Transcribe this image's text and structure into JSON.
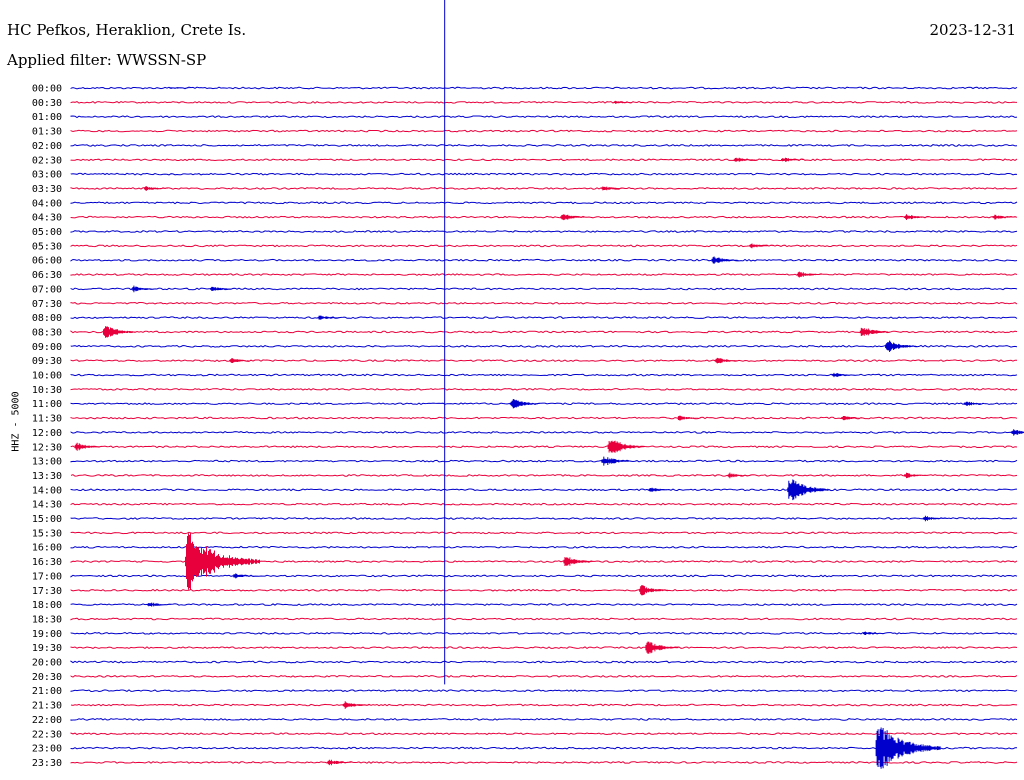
{
  "header": {
    "station": "HC Pefkos, Heraklion, Crete Is.",
    "filter": "Applied filter: WWSSN-SP",
    "date": "2023-12-31",
    "channel": "HHZ - 5000"
  },
  "chart_data": {
    "type": "line",
    "title": "HC Pefkos, Heraklion, Crete Is.",
    "date": "2023-12-31",
    "filter": "WWSSN-SP",
    "ylabel": "HHZ - 5000",
    "row_labels": [
      "00:00",
      "00:30",
      "01:00",
      "01:30",
      "02:00",
      "02:30",
      "03:00",
      "03:30",
      "04:00",
      "04:30",
      "05:00",
      "05:30",
      "06:00",
      "06:30",
      "07:00",
      "07:30",
      "08:00",
      "08:30",
      "09:00",
      "09:30",
      "10:00",
      "10:30",
      "11:00",
      "11:30",
      "12:00",
      "12:30",
      "13:00",
      "13:30",
      "14:00",
      "14:30",
      "15:00",
      "15:30",
      "16:00",
      "16:30",
      "17:00",
      "17:30",
      "18:00",
      "18:30",
      "19:00",
      "19:30",
      "20:00",
      "20:30",
      "21:00",
      "21:30",
      "22:00",
      "22:30",
      "23:00",
      "23:30"
    ],
    "row_colors": [
      "#0000cc",
      "#e8003c"
    ],
    "x_range_minutes": [
      0,
      30
    ],
    "vertical_marker": {
      "row_start": 0,
      "row_end": 41,
      "x_minute": 11.85,
      "color": "#0000cc"
    },
    "events": [
      {
        "row": 0,
        "x_minute": 3.1,
        "amp": 2
      },
      {
        "row": 1,
        "x_minute": 17.2,
        "amp": 3
      },
      {
        "row": 5,
        "x_minute": 21.0,
        "amp": 4
      },
      {
        "row": 5,
        "x_minute": 22.5,
        "amp": 4
      },
      {
        "row": 7,
        "x_minute": 2.3,
        "amp": 4
      },
      {
        "row": 7,
        "x_minute": 16.8,
        "amp": 4
      },
      {
        "row": 9,
        "x_minute": 15.5,
        "amp": 6
      },
      {
        "row": 9,
        "x_minute": 26.4,
        "amp": 5
      },
      {
        "row": 9,
        "x_minute": 29.2,
        "amp": 4
      },
      {
        "row": 11,
        "x_minute": 21.5,
        "amp": 4
      },
      {
        "row": 12,
        "x_minute": 20.3,
        "amp": 6
      },
      {
        "row": 13,
        "x_minute": 23.0,
        "amp": 5
      },
      {
        "row": 14,
        "x_minute": 1.9,
        "amp": 5
      },
      {
        "row": 14,
        "x_minute": 4.4,
        "amp": 4
      },
      {
        "row": 16,
        "x_minute": 7.8,
        "amp": 4
      },
      {
        "row": 17,
        "x_minute": 1.0,
        "amp": 10
      },
      {
        "row": 17,
        "x_minute": 25.0,
        "amp": 8
      },
      {
        "row": 18,
        "x_minute": 25.8,
        "amp": 9
      },
      {
        "row": 19,
        "x_minute": 5.0,
        "amp": 4
      },
      {
        "row": 19,
        "x_minute": 20.4,
        "amp": 5
      },
      {
        "row": 20,
        "x_minute": 24.1,
        "amp": 4
      },
      {
        "row": 22,
        "x_minute": 13.9,
        "amp": 8
      },
      {
        "row": 22,
        "x_minute": 28.3,
        "amp": 4
      },
      {
        "row": 23,
        "x_minute": 19.2,
        "amp": 4
      },
      {
        "row": 23,
        "x_minute": 24.4,
        "amp": 4
      },
      {
        "row": 24,
        "x_minute": 29.8,
        "amp": 5
      },
      {
        "row": 25,
        "x_minute": 0.1,
        "amp": 6
      },
      {
        "row": 25,
        "x_minute": 17.0,
        "amp": 12
      },
      {
        "row": 26,
        "x_minute": 16.8,
        "amp": 8
      },
      {
        "row": 27,
        "x_minute": 20.8,
        "amp": 4
      },
      {
        "row": 27,
        "x_minute": 26.4,
        "amp": 4
      },
      {
        "row": 28,
        "x_minute": 22.7,
        "amp": 16
      },
      {
        "row": 28,
        "x_minute": 18.3,
        "amp": 4
      },
      {
        "row": 30,
        "x_minute": 27.0,
        "amp": 4
      },
      {
        "row": 33,
        "x_minute": 3.6,
        "amp": 36
      },
      {
        "row": 33,
        "x_minute": 15.6,
        "amp": 8
      },
      {
        "row": 34,
        "x_minute": 5.1,
        "amp": 4
      },
      {
        "row": 35,
        "x_minute": 18.0,
        "amp": 8
      },
      {
        "row": 36,
        "x_minute": 2.4,
        "amp": 4
      },
      {
        "row": 38,
        "x_minute": 25.1,
        "amp": 3
      },
      {
        "row": 39,
        "x_minute": 18.2,
        "amp": 10
      },
      {
        "row": 43,
        "x_minute": 8.6,
        "amp": 6
      },
      {
        "row": 46,
        "x_minute": 25.5,
        "amp": 30
      },
      {
        "row": 47,
        "x_minute": 8.1,
        "amp": 5
      }
    ]
  }
}
